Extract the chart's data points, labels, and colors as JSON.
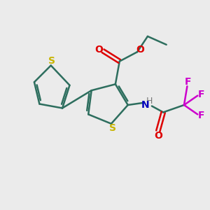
{
  "background_color": "#ebebeb",
  "bond_color": "#2d6e5e",
  "sulfur_color": "#c8b400",
  "oxygen_color": "#dd0000",
  "nitrogen_color": "#0000bb",
  "fluorine_color": "#cc00cc",
  "carbon_color": "#2d6e5e",
  "line_width": 1.8,
  "figsize": [
    3.0,
    3.0
  ],
  "dpi": 100,
  "xlim": [
    0,
    10
  ],
  "ylim": [
    0,
    10
  ]
}
